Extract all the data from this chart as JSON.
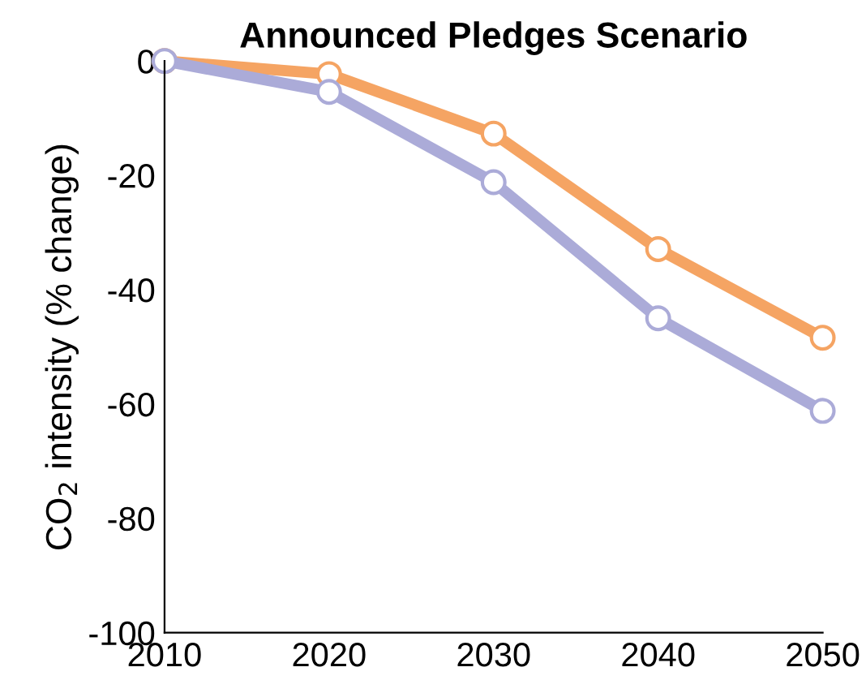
{
  "chart_data": {
    "type": "line",
    "title": "Announced Pledges Scenario",
    "ylabel": "CO$_{2}$ intensity (% change)",
    "x": [
      2010,
      2020,
      2030,
      2040,
      2050
    ],
    "series": [
      {
        "color": "#f5a463",
        "values": [
          0,
          -2.3,
          -12.7,
          -32.9,
          -48.4
        ]
      },
      {
        "color": "#ababd8",
        "values": [
          0,
          -5.4,
          -21.2,
          -45.0,
          -61.2
        ]
      }
    ],
    "xlim": [
      2010,
      2050
    ],
    "xticks": [
      2010,
      2020,
      2030,
      2040,
      2050
    ],
    "ylim": [
      -100,
      0
    ],
    "yticks": [
      {
        "value": -100,
        "label": "-100"
      },
      {
        "value": -80,
        "label": "-80"
      },
      {
        "value": -60,
        "label": "-60"
      },
      {
        "value": -40,
        "label": "-40"
      },
      {
        "value": -20,
        "label": "-20"
      },
      0
    ],
    "marker": "circle",
    "line_style": "solid",
    "grid": false,
    "legend": false
  }
}
